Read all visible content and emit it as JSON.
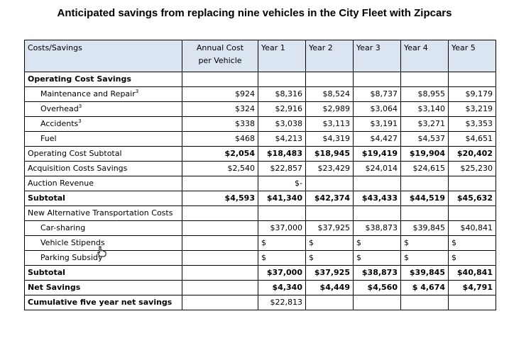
{
  "title": "Anticipated savings from replacing nine vehicles in the City Fleet with Zipcars",
  "header": {
    "label": "Costs/Savings",
    "annual_line1": "Annual Cost",
    "annual_line2": "per Vehicle",
    "years": [
      "Year 1",
      "Year 2",
      "Year 3",
      "Year 4",
      "Year 5"
    ]
  },
  "rows": [
    {
      "label": "Operating Cost Savings",
      "sup": "",
      "annual": "",
      "values": [
        "",
        "",
        "",
        "",
        ""
      ]
    },
    {
      "label": "Maintenance and Repair",
      "sup": "3",
      "annual": "$924",
      "values": [
        "$8,316",
        "$8,524",
        "$8,737",
        "$8,955",
        "$9,179"
      ]
    },
    {
      "label": "Overhead",
      "sup": "3",
      "annual": "$324",
      "values": [
        "$2,916",
        "$2,989",
        "$3,064",
        "$3,140",
        "$3,219"
      ]
    },
    {
      "label": "Accidents",
      "sup": "3",
      "annual": "$338",
      "values": [
        "$3,038",
        "$3,113",
        "$3,191",
        "$3,271",
        "$3,353"
      ]
    },
    {
      "label": "Fuel",
      "sup": "",
      "annual": "$468",
      "values": [
        "$4,213",
        "$4,319",
        "$4,427",
        "$4,537",
        "$4,651"
      ]
    },
    {
      "label": "Operating Cost Subtotal",
      "sup": "",
      "annual": "$2,054",
      "values": [
        "$18,483",
        "$18,945",
        "$19,419",
        "$19,904",
        "$20,402"
      ]
    },
    {
      "label": "Acquisition Costs Savings",
      "sup": "",
      "annual": "$2,540",
      "values": [
        "$22,857",
        "$23,429",
        "$24,014",
        "$24,615",
        "$25,230"
      ]
    },
    {
      "label": "Auction Revenue",
      "sup": "",
      "annual": "",
      "values": [
        "$-",
        "",
        "",
        "",
        ""
      ]
    },
    {
      "label": "Subtotal",
      "sup": "",
      "annual": "$4,593",
      "values": [
        "$41,340",
        "$42,374",
        "$43,433",
        "$44,519",
        "$45,632"
      ]
    },
    {
      "label": "New Alternative Transportation Costs",
      "sup": "",
      "annual": "",
      "values": [
        "",
        "",
        "",
        "",
        ""
      ]
    },
    {
      "label": "Car-sharing",
      "sup": "",
      "annual": "",
      "values": [
        "$37,000",
        "$37,925",
        "$38,873",
        "$39,845",
        "$40,841"
      ]
    },
    {
      "label": "Vehicle Stipends",
      "sup": "",
      "annual": "",
      "values": [
        "$",
        "$",
        "$",
        "$",
        "$"
      ]
    },
    {
      "label": "Parking Subsidy",
      "sup": "",
      "annual": "",
      "values": [
        "$",
        "$",
        "$",
        "$",
        "$"
      ]
    },
    {
      "label": "Subtotal",
      "sup": "",
      "annual": "",
      "values": [
        "$37,000",
        "$37,925",
        "$38,873",
        "$39,845",
        "$40,841"
      ]
    },
    {
      "label": "Net Savings",
      "sup": "",
      "annual": "",
      "values": [
        "$4,340",
        "$4,449",
        "$4,560",
        "$ 4,674",
        "$4,791"
      ]
    },
    {
      "label": "Cumulative five year net savings",
      "sup": "",
      "annual": "",
      "values": [
        "$22,813",
        "",
        "",
        "",
        ""
      ]
    }
  ]
}
